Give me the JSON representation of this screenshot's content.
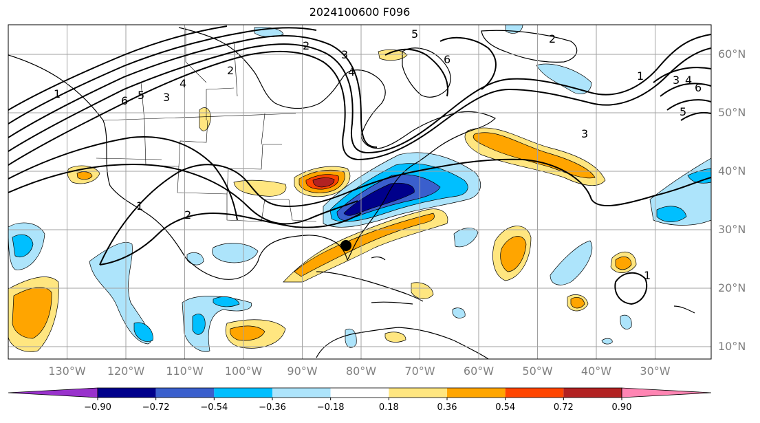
{
  "title": "2024100600 F096",
  "latitude_labels": [
    "60°N",
    "50°N",
    "40°N",
    "30°N",
    "20°N",
    "10°N"
  ],
  "longitude_labels": [
    "130°W",
    "120°W",
    "110°W",
    "100°W",
    "90°W",
    "80°W",
    "70°W",
    "60°W",
    "50°W",
    "40°W",
    "30°W"
  ],
  "contour_labels": [
    "1",
    "2",
    "2",
    "3",
    "4",
    "5",
    "6",
    "3",
    "2",
    "1",
    "3",
    "4",
    "6",
    "5",
    "1",
    "2",
    "3",
    "4",
    "5",
    "6",
    "1"
  ],
  "colorbar": {
    "ticks": [
      "−0.90",
      "−0.72",
      "−0.54",
      "−0.36",
      "−0.18",
      "0.18",
      "0.36",
      "0.54",
      "0.72",
      "0.90"
    ],
    "colors": [
      "#9932cc",
      "#00008b",
      "#3a5fcd",
      "#00bfff",
      "#ade4fb",
      "#ffffff",
      "#ffe680",
      "#ffa500",
      "#ff4500",
      "#b22222",
      "#ff85b3"
    ]
  },
  "marker": {
    "label": "storm-center",
    "lon": -82.5,
    "lat": 27.3
  },
  "colors": {
    "land_outline": "#000000",
    "grid": "#a0a0a0"
  }
}
